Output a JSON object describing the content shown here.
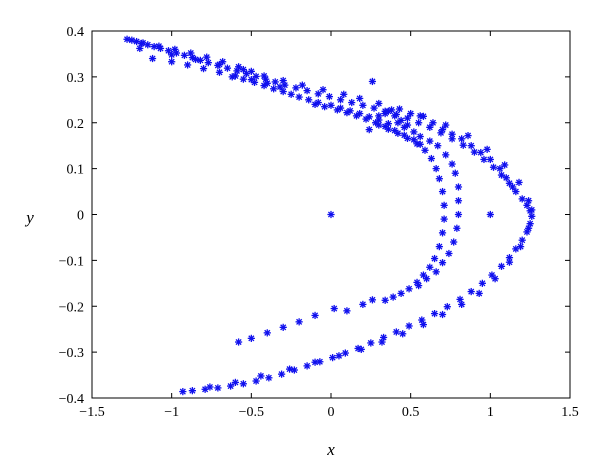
{
  "chart_data": {
    "type": "scatter",
    "xlabel": "x",
    "ylabel": "y",
    "xlim": [
      -1.5,
      1.5
    ],
    "ylim": [
      -0.4,
      0.4
    ],
    "xticks": [
      -1.5,
      -1,
      -0.5,
      0,
      0.5,
      1,
      1.5
    ],
    "yticks": [
      -0.4,
      -0.3,
      -0.2,
      -0.1,
      0,
      0.1,
      0.2,
      0.3,
      0.4
    ],
    "xtick_labels": [
      "−1.5",
      "−1",
      "−0.5",
      "0",
      "0.5",
      "1",
      "1.5"
    ],
    "ytick_labels": [
      "−0.4",
      "−0.3",
      "−0.2",
      "−0.1",
      "0",
      "0.1",
      "0.2",
      "0.3",
      "0.4"
    ],
    "grid": false,
    "marker": "asterisk",
    "marker_color": "#1010ee",
    "series": [
      {
        "points": [
          [
            -1.28,
            0.382
          ],
          [
            -1.25,
            0.38
          ],
          [
            -1.22,
            0.377
          ],
          [
            -1.19,
            0.373
          ],
          [
            -1.15,
            0.37
          ],
          [
            -1.11,
            0.366
          ],
          [
            -1.07,
            0.362
          ],
          [
            -1.02,
            0.357
          ],
          [
            -0.97,
            0.352
          ],
          [
            -0.92,
            0.347
          ],
          [
            -0.87,
            0.342
          ],
          [
            -0.82,
            0.336
          ],
          [
            -0.77,
            0.331
          ],
          [
            -0.71,
            0.325
          ],
          [
            -0.65,
            0.319
          ],
          [
            -0.59,
            0.313
          ],
          [
            -0.53,
            0.307
          ],
          [
            -0.47,
            0.301
          ],
          [
            -0.41,
            0.295
          ],
          [
            -0.35,
            0.289
          ],
          [
            -0.29,
            0.282
          ],
          [
            -0.22,
            0.276
          ],
          [
            -0.15,
            0.27
          ],
          [
            -0.08,
            0.263
          ],
          [
            -0.01,
            0.257
          ],
          [
            0.06,
            0.25
          ],
          [
            0.13,
            0.244
          ],
          [
            0.2,
            0.238
          ],
          [
            0.27,
            0.232
          ],
          [
            0.34,
            0.225
          ],
          [
            0.41,
            0.218
          ],
          [
            0.48,
            0.21
          ],
          [
            0.55,
            0.2
          ],
          [
            0.62,
            0.19
          ],
          [
            0.69,
            0.178
          ],
          [
            0.76,
            0.165
          ],
          [
            0.83,
            0.151
          ],
          [
            0.9,
            0.136
          ],
          [
            0.96,
            0.12
          ],
          [
            1.02,
            0.103
          ],
          [
            1.07,
            0.086
          ],
          [
            1.12,
            0.068
          ],
          [
            1.16,
            0.05
          ],
          [
            1.2,
            0.034
          ],
          [
            1.23,
            0.02
          ],
          [
            1.25,
            0.008
          ],
          [
            1.26,
            -0.004
          ],
          [
            1.25,
            -0.02
          ],
          [
            1.23,
            -0.038
          ],
          [
            1.2,
            -0.056
          ],
          [
            1.16,
            -0.075
          ],
          [
            1.12,
            -0.094
          ],
          [
            1.07,
            -0.113
          ],
          [
            1.01,
            -0.132
          ],
          [
            0.95,
            -0.15
          ],
          [
            0.88,
            -0.168
          ],
          [
            0.81,
            -0.185
          ],
          [
            0.73,
            -0.201
          ],
          [
            0.65,
            -0.216
          ],
          [
            0.57,
            -0.23
          ],
          [
            0.49,
            -0.243
          ],
          [
            0.41,
            -0.256
          ],
          [
            0.33,
            -0.268
          ],
          [
            0.25,
            -0.28
          ],
          [
            0.17,
            -0.292
          ],
          [
            0.09,
            -0.302
          ],
          [
            0.01,
            -0.312
          ],
          [
            -0.07,
            -0.321
          ],
          [
            -0.15,
            -0.33
          ],
          [
            -0.23,
            -0.339
          ],
          [
            -0.31,
            -0.348
          ],
          [
            -0.39,
            -0.356
          ],
          [
            -0.47,
            -0.363
          ],
          [
            -0.55,
            -0.369
          ],
          [
            -0.63,
            -0.374
          ],
          [
            -0.71,
            -0.378
          ],
          [
            -0.79,
            -0.381
          ],
          [
            -0.87,
            -0.384
          ],
          [
            -0.93,
            -0.386
          ],
          [
            -1.18,
            0.374
          ],
          [
            -1.08,
            0.367
          ],
          [
            -0.98,
            0.36
          ],
          [
            -0.88,
            0.352
          ],
          [
            -0.78,
            0.343
          ],
          [
            -0.68,
            0.333
          ],
          [
            -0.58,
            0.322
          ],
          [
            -0.5,
            0.312
          ],
          [
            -0.42,
            0.302
          ],
          [
            -0.3,
            0.292
          ],
          [
            -0.18,
            0.282
          ],
          [
            -0.05,
            0.272
          ],
          [
            0.08,
            0.262
          ],
          [
            0.18,
            0.253
          ],
          [
            0.3,
            0.242
          ],
          [
            0.43,
            0.23
          ],
          [
            0.58,
            0.214
          ],
          [
            0.72,
            0.195
          ],
          [
            0.86,
            0.172
          ],
          [
            0.98,
            0.142
          ],
          [
            1.09,
            0.108
          ],
          [
            1.18,
            0.07
          ],
          [
            1.24,
            0.03
          ],
          [
            1.26,
            0.01
          ],
          [
            1.24,
            -0.03
          ],
          [
            1.19,
            -0.07
          ],
          [
            1.12,
            -0.104
          ],
          [
            1.03,
            -0.14
          ],
          [
            0.93,
            -0.172
          ],
          [
            0.82,
            -0.196
          ],
          [
            0.7,
            -0.218
          ],
          [
            0.58,
            -0.24
          ],
          [
            0.45,
            -0.26
          ],
          [
            0.32,
            -0.278
          ],
          [
            0.19,
            -0.294
          ],
          [
            0.05,
            -0.308
          ],
          [
            -0.1,
            -0.322
          ],
          [
            -0.26,
            -0.337
          ],
          [
            -0.44,
            -0.352
          ],
          [
            -0.6,
            -0.366
          ],
          [
            -0.76,
            -0.376
          ],
          [
            -1.2,
            0.362
          ],
          [
            -1.0,
            0.348
          ],
          [
            -0.85,
            0.338
          ],
          [
            -0.7,
            0.327
          ],
          [
            -0.55,
            0.316
          ],
          [
            -1.12,
            0.34
          ],
          [
            -1.0,
            0.333
          ],
          [
            -0.9,
            0.326
          ],
          [
            -0.8,
            0.318
          ],
          [
            -0.7,
            0.31
          ],
          [
            -0.6,
            0.302
          ],
          [
            -0.5,
            0.294
          ],
          [
            -0.4,
            0.286
          ],
          [
            -0.32,
            0.278
          ],
          [
            -0.62,
            0.3
          ],
          [
            -0.55,
            0.295
          ],
          [
            -0.48,
            0.288
          ],
          [
            -0.42,
            0.281
          ],
          [
            -0.36,
            0.274
          ],
          [
            -0.3,
            0.268
          ],
          [
            -0.25,
            0.262
          ],
          [
            -0.2,
            0.256
          ],
          [
            -0.14,
            0.25
          ],
          [
            -0.08,
            0.244
          ],
          [
            0.0,
            0.238
          ],
          [
            0.06,
            0.232
          ],
          [
            0.12,
            0.226
          ],
          [
            0.18,
            0.22
          ],
          [
            0.24,
            0.213
          ],
          [
            0.3,
            0.206
          ],
          [
            0.36,
            0.198
          ],
          [
            -0.1,
            0.24
          ],
          [
            -0.04,
            0.235
          ],
          [
            0.04,
            0.228
          ],
          [
            0.1,
            0.222
          ],
          [
            0.16,
            0.215
          ],
          [
            0.22,
            0.208
          ],
          [
            0.28,
            0.2
          ],
          [
            0.34,
            0.192
          ],
          [
            0.4,
            0.183
          ],
          [
            0.46,
            0.173
          ],
          [
            0.52,
            0.163
          ],
          [
            0.56,
            0.153
          ],
          [
            0.3,
            0.195
          ],
          [
            0.36,
            0.186
          ],
          [
            0.42,
            0.177
          ],
          [
            0.48,
            0.166
          ],
          [
            0.54,
            0.154
          ],
          [
            0.59,
            0.14
          ],
          [
            0.63,
            0.122
          ],
          [
            0.66,
            0.1
          ],
          [
            0.68,
            0.078
          ],
          [
            0.7,
            0.05
          ],
          [
            0.71,
            0.02
          ],
          [
            0.71,
            -0.01
          ],
          [
            0.7,
            -0.04
          ],
          [
            0.68,
            -0.07
          ],
          [
            0.65,
            -0.096
          ],
          [
            0.62,
            -0.115
          ],
          [
            0.58,
            -0.132
          ],
          [
            0.54,
            -0.148
          ],
          [
            0.49,
            -0.162
          ],
          [
            0.44,
            -0.172
          ],
          [
            0.39,
            -0.18
          ],
          [
            0.34,
            -0.187
          ],
          [
            0.24,
            0.185
          ],
          [
            0.3,
            0.215
          ],
          [
            0.36,
            0.225
          ],
          [
            0.4,
            0.215
          ],
          [
            0.44,
            0.205
          ],
          [
            0.48,
            0.195
          ],
          [
            0.52,
            0.18
          ],
          [
            0.56,
            0.17
          ],
          [
            0.62,
            0.16
          ],
          [
            0.67,
            0.15
          ],
          [
            0.72,
            0.13
          ],
          [
            0.76,
            0.11
          ],
          [
            0.78,
            0.09
          ],
          [
            0.8,
            0.06
          ],
          [
            0.8,
            0.03
          ],
          [
            0.8,
            0.0
          ],
          [
            0.79,
            -0.03
          ],
          [
            0.77,
            -0.06
          ],
          [
            0.74,
            -0.085
          ],
          [
            0.7,
            -0.105
          ],
          [
            0.66,
            -0.125
          ],
          [
            0.6,
            -0.14
          ],
          [
            0.55,
            -0.155
          ],
          [
            0.26,
            -0.186
          ],
          [
            0.2,
            -0.196
          ],
          [
            0.1,
            -0.21
          ],
          [
            0.02,
            -0.205
          ],
          [
            -0.1,
            -0.22
          ],
          [
            -0.2,
            -0.234
          ],
          [
            -0.3,
            -0.246
          ],
          [
            -0.4,
            -0.258
          ],
          [
            -0.5,
            -0.27
          ],
          [
            -0.58,
            -0.278
          ],
          [
            0.5,
            0.22
          ],
          [
            0.56,
            0.215
          ],
          [
            0.64,
            0.2
          ],
          [
            0.7,
            0.185
          ],
          [
            0.76,
            0.175
          ],
          [
            0.82,
            0.165
          ],
          [
            0.88,
            0.15
          ],
          [
            0.94,
            0.135
          ],
          [
            1.0,
            0.12
          ],
          [
            1.06,
            0.1
          ],
          [
            1.1,
            0.08
          ],
          [
            1.14,
            0.06
          ],
          [
            0.34,
            0.22
          ],
          [
            0.38,
            0.228
          ],
          [
            0.42,
            0.2
          ],
          [
            0.46,
            0.19
          ],
          [
            0.26,
            0.29
          ],
          [
            0.0,
            0.0
          ],
          [
            1.0,
            0.0
          ]
        ]
      }
    ]
  }
}
